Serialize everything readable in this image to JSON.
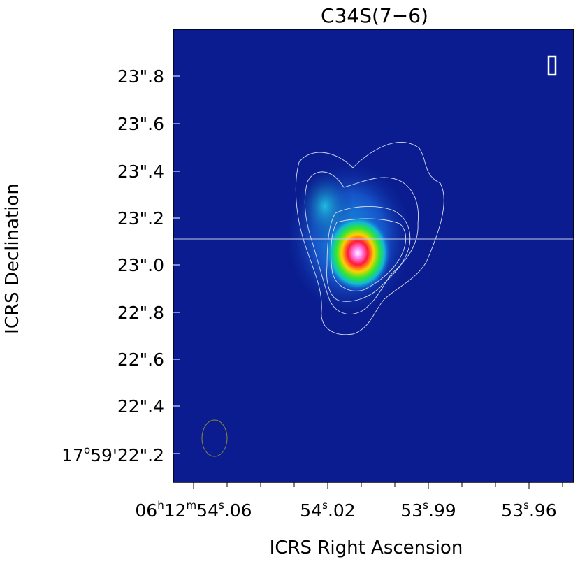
{
  "title": "C34S(7−6)",
  "xlabel": "ICRS Right Ascension",
  "ylabel": "ICRS Declination",
  "y_ticks": [
    {
      "value": 23.8,
      "label": "23\".8"
    },
    {
      "value": 23.6,
      "label": "23\".6"
    },
    {
      "value": 23.4,
      "label": "23\".4"
    },
    {
      "value": 23.2,
      "label": "23\".2"
    },
    {
      "value": 23.0,
      "label": "23\".0"
    },
    {
      "value": 22.8,
      "label": "22\".8"
    },
    {
      "value": 22.6,
      "label": "22\".6"
    },
    {
      "value": 22.4,
      "label": "22\".4"
    },
    {
      "value": 22.2,
      "label_prefix": "17",
      "label_deg": "o",
      "label_rest": "59'22\".2"
    }
  ],
  "x_ticks": [
    {
      "value": 54.06,
      "label_h": "06",
      "label_m": "12",
      "label_s": "54",
      "label_frac": ".06"
    },
    {
      "value": 54.02,
      "label_s": "54",
      "label_frac": ".02"
    },
    {
      "value": 53.99,
      "label_s": "53",
      "label_frac": ".99"
    },
    {
      "value": 53.96,
      "label_s": "53",
      "label_frac": ".96"
    }
  ],
  "h_sup": "h",
  "m_sup": "m",
  "s_sup": "s",
  "colors": {
    "background": "#0a1a8c",
    "contour": "#d8dcf0",
    "beam": "#8a8a3a"
  }
}
